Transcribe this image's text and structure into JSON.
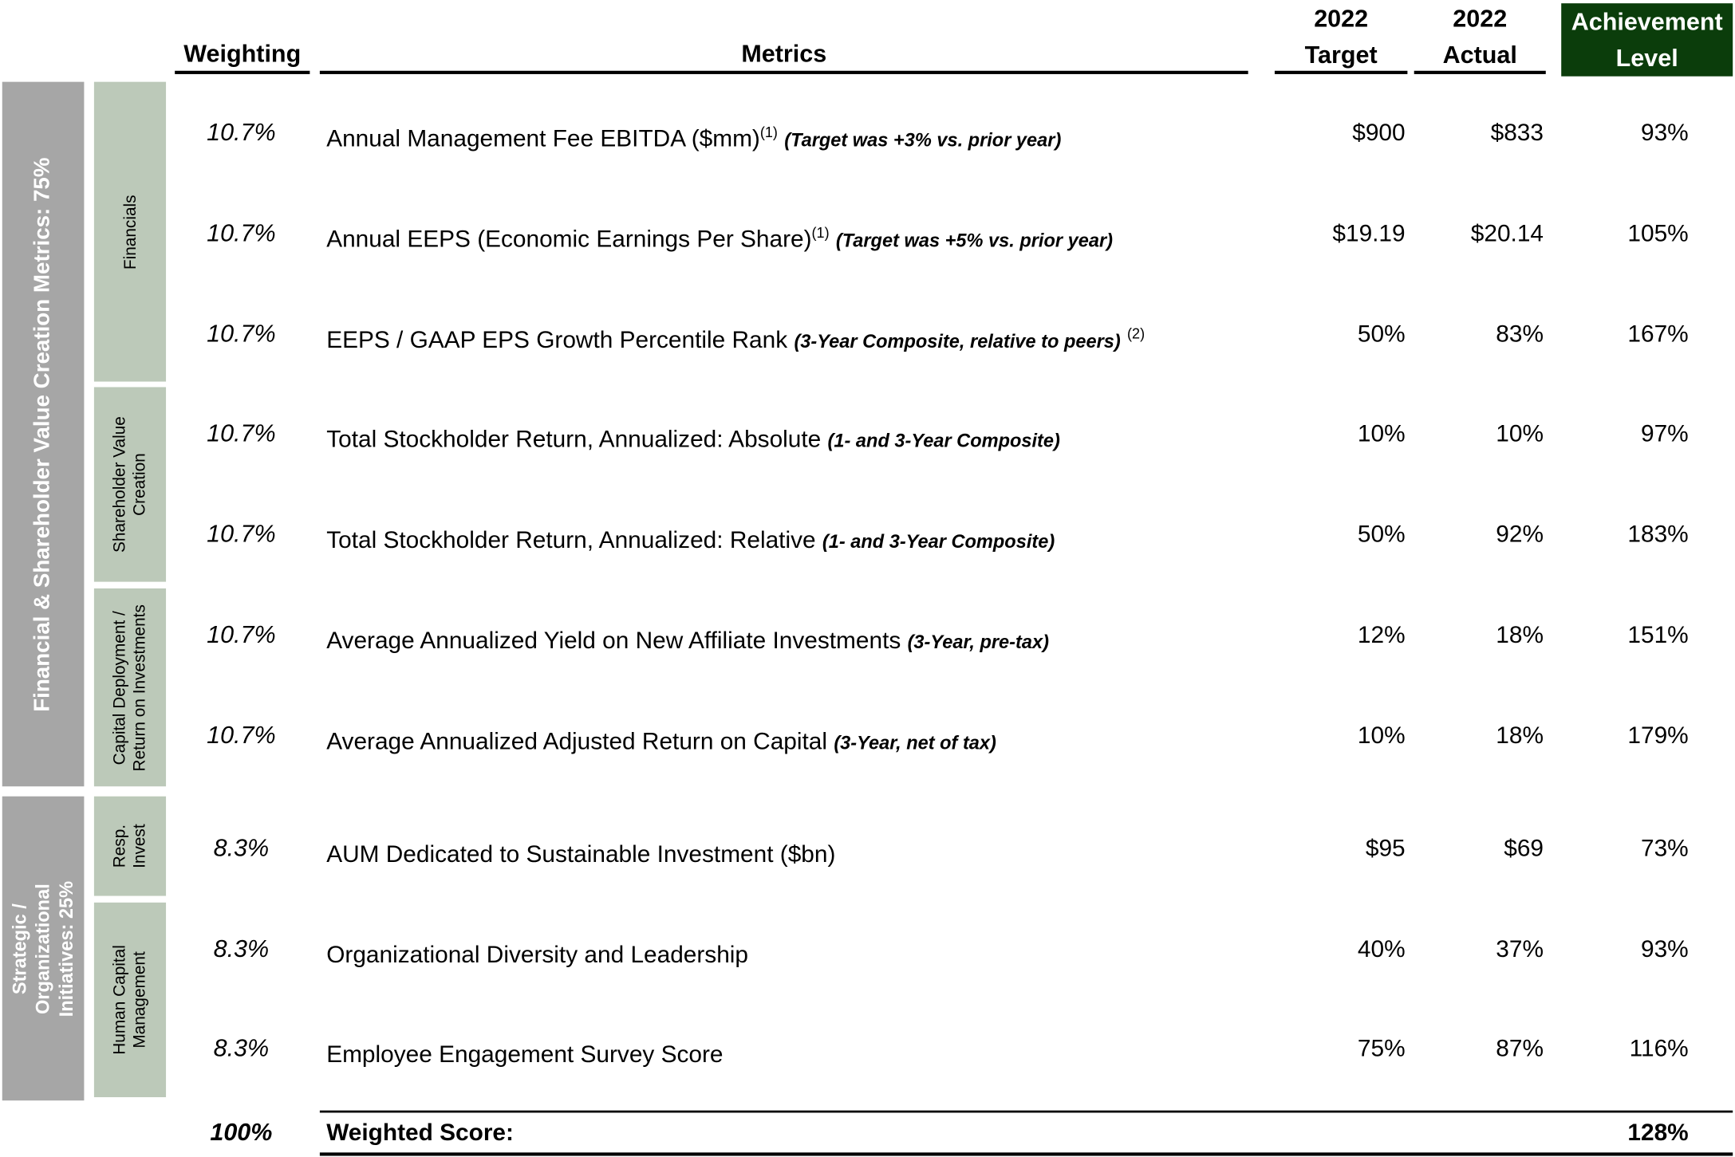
{
  "header": {
    "weighting": "Weighting",
    "metrics": "Metrics",
    "target_year": "2022",
    "target": "Target",
    "actual_year": "2022",
    "actual": "Actual",
    "achievement_line1": "Achievement",
    "achievement_line2": "Level",
    "achievement_bg": "#0b3d0b"
  },
  "groups": {
    "financial": "Financial & Shareholder Value Creation Metrics:  75%",
    "strategic": "Strategic / Organizational Initiatives:  25%",
    "gray_color": "#a6a6a6",
    "sub_color": "#bcc9b9"
  },
  "subgroups": {
    "financials": "Financials",
    "shareholder": "Shareholder Value Creation",
    "capital": "Capital Deployment / Return on Investments",
    "resp": "Resp. Invest",
    "human": "Human Capital Management"
  },
  "rows": [
    {
      "weight": "10.7%",
      "metric": "Annual Management Fee EBITDA  ($mm)",
      "sup": "(1)",
      "note": "(Target was +3% vs. prior year)",
      "note_sup": "",
      "target": "$900",
      "actual": "$833",
      "level": "93%"
    },
    {
      "weight": "10.7%",
      "metric": "Annual EEPS (Economic Earnings Per Share)",
      "sup": "(1)",
      "note": "(Target was +5% vs. prior year)",
      "note_sup": "",
      "target": "$19.19",
      "actual": "$20.14",
      "level": "105%"
    },
    {
      "weight": "10.7%",
      "metric": "EEPS / GAAP EPS Growth Percentile Rank",
      "sup": "",
      "note": "(3-Year Composite, relative to peers)",
      "note_sup": "(2)",
      "target": "50%",
      "actual": "83%",
      "level": "167%"
    },
    {
      "weight": "10.7%",
      "metric": "Total Stockholder Return, Annualized:  Absolute",
      "sup": "",
      "note": "(1- and 3-Year Composite)",
      "note_sup": "",
      "target": "10%",
      "actual": "10%",
      "level": "97%"
    },
    {
      "weight": "10.7%",
      "metric": "Total Stockholder Return, Annualized:  Relative",
      "sup": "",
      "note": "(1- and 3-Year Composite)",
      "note_sup": "",
      "target": "50%",
      "actual": "92%",
      "level": "183%"
    },
    {
      "weight": "10.7%",
      "metric": "Average Annualized Yield on New Affiliate Investments",
      "sup": "",
      "note": "(3-Year, pre-tax)",
      "note_sup": "",
      "target": "12%",
      "actual": "18%",
      "level": "151%"
    },
    {
      "weight": "10.7%",
      "metric": "Average Annualized Adjusted Return on Capital",
      "sup": "",
      "note": "(3-Year, net of tax)",
      "note_sup": "",
      "target": "10%",
      "actual": "18%",
      "level": "179%"
    },
    {
      "weight": "8.3%",
      "metric": "AUM Dedicated to Sustainable Investment ($bn)",
      "sup": "",
      "note": "",
      "note_sup": "",
      "target": "$95",
      "actual": "$69",
      "level": "73%"
    },
    {
      "weight": "8.3%",
      "metric": "Organizational Diversity and Leadership",
      "sup": "",
      "note": "",
      "note_sup": "",
      "target": "40%",
      "actual": "37%",
      "level": "93%"
    },
    {
      "weight": "8.3%",
      "metric": "Employee Engagement Survey Score",
      "sup": "",
      "note": "",
      "note_sup": "",
      "target": "75%",
      "actual": "87%",
      "level": "116%"
    }
  ],
  "total": {
    "weight": "100%",
    "label": "Weighted Score:",
    "level": "128%"
  }
}
